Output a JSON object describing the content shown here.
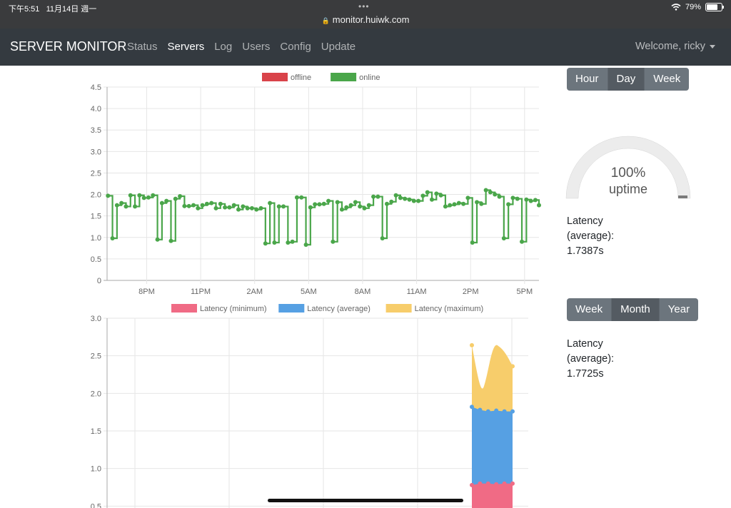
{
  "status_bar": {
    "time": "下午5:51",
    "date": "11月14日 週一",
    "dots": "•••",
    "url": "monitor.huiwk.com",
    "battery": "79%"
  },
  "navbar": {
    "brand": "SERVER MONITOR",
    "items": [
      {
        "label": "Status",
        "active": false
      },
      {
        "label": "Servers",
        "active": true
      },
      {
        "label": "Log",
        "active": false
      },
      {
        "label": "Users",
        "active": false
      },
      {
        "label": "Config",
        "active": false
      },
      {
        "label": "Update",
        "active": false
      }
    ],
    "welcome": "Welcome, ricky"
  },
  "range_top": {
    "buttons": [
      "Hour",
      "Day",
      "Week"
    ],
    "active": "Day"
  },
  "gauge": {
    "percent_label": "100%",
    "label": "uptime",
    "value": 100
  },
  "latency_day": {
    "label1": "Latency",
    "label2": "(average):",
    "value": "1.7387s"
  },
  "range_bottom": {
    "buttons": [
      "Week",
      "Month",
      "Year"
    ],
    "active": "Month"
  },
  "latency_month": {
    "label1": "Latency",
    "label2": "(average):",
    "value": "1.7725s"
  },
  "colors": {
    "offline": "#d9434a",
    "online": "#4aa64a",
    "min": "#f06b85",
    "avg": "#56a0e3",
    "max": "#f7cd6b"
  },
  "chart_data": [
    {
      "type": "line",
      "legend": [
        {
          "name": "offline",
          "color": "#d9434a"
        },
        {
          "name": "online",
          "color": "#4aa64a"
        }
      ],
      "ylim": [
        0,
        4.5
      ],
      "yticks": [
        "0",
        "0.5",
        "1.0",
        "1.5",
        "2.0",
        "2.5",
        "3.0",
        "3.5",
        "4.0",
        "4.5"
      ],
      "xticks": [
        "8PM",
        "11PM",
        "2AM",
        "5AM",
        "8AM",
        "11AM",
        "2PM",
        "5PM"
      ],
      "xlim_hours": [
        17.8,
        41.8
      ],
      "series": [
        {
          "name": "online",
          "stepped": true,
          "points": [
            [
              17.85,
              1.97
            ],
            [
              18.1,
              0.98
            ],
            [
              18.35,
              1.75
            ],
            [
              18.6,
              1.8
            ],
            [
              18.85,
              1.72
            ],
            [
              19.1,
              1.98
            ],
            [
              19.35,
              1.72
            ],
            [
              19.6,
              1.98
            ],
            [
              19.85,
              1.92
            ],
            [
              20.1,
              1.93
            ],
            [
              20.35,
              1.98
            ],
            [
              20.6,
              0.95
            ],
            [
              20.85,
              1.8
            ],
            [
              21.1,
              1.85
            ],
            [
              21.35,
              0.92
            ],
            [
              21.6,
              1.9
            ],
            [
              21.85,
              1.96
            ],
            [
              22.1,
              1.73
            ],
            [
              22.35,
              1.73
            ],
            [
              22.6,
              1.75
            ],
            [
              22.85,
              1.68
            ],
            [
              23.1,
              1.75
            ],
            [
              23.35,
              1.78
            ],
            [
              23.6,
              1.8
            ],
            [
              23.85,
              1.68
            ],
            [
              24.1,
              1.78
            ],
            [
              24.35,
              1.7
            ],
            [
              24.6,
              1.7
            ],
            [
              24.85,
              1.75
            ],
            [
              25.1,
              1.65
            ],
            [
              25.35,
              1.72
            ],
            [
              25.6,
              1.68
            ],
            [
              25.85,
              1.68
            ],
            [
              26.1,
              1.65
            ],
            [
              26.35,
              1.68
            ],
            [
              26.6,
              0.86
            ],
            [
              26.85,
              1.8
            ],
            [
              27.1,
              0.88
            ],
            [
              27.35,
              1.72
            ],
            [
              27.6,
              1.72
            ],
            [
              27.85,
              0.88
            ],
            [
              28.1,
              0.9
            ],
            [
              28.35,
              1.93
            ],
            [
              28.6,
              1.93
            ],
            [
              28.85,
              0.83
            ],
            [
              29.1,
              1.7
            ],
            [
              29.35,
              1.77
            ],
            [
              29.6,
              1.77
            ],
            [
              29.85,
              1.78
            ],
            [
              30.1,
              1.85
            ],
            [
              30.35,
              0.9
            ],
            [
              30.6,
              1.82
            ],
            [
              30.85,
              1.65
            ],
            [
              31.1,
              1.7
            ],
            [
              31.35,
              1.75
            ],
            [
              31.6,
              1.82
            ],
            [
              31.85,
              1.72
            ],
            [
              32.1,
              1.68
            ],
            [
              32.35,
              1.75
            ],
            [
              32.6,
              1.95
            ],
            [
              32.85,
              1.95
            ],
            [
              33.1,
              0.98
            ],
            [
              33.35,
              1.78
            ],
            [
              33.6,
              1.83
            ],
            [
              33.85,
              1.98
            ],
            [
              34.1,
              1.92
            ],
            [
              34.35,
              1.9
            ],
            [
              34.6,
              1.88
            ],
            [
              34.85,
              1.85
            ],
            [
              35.1,
              1.85
            ],
            [
              35.35,
              1.97
            ],
            [
              35.6,
              2.05
            ],
            [
              35.85,
              1.88
            ],
            [
              36.1,
              2.02
            ],
            [
              36.35,
              1.98
            ],
            [
              36.6,
              1.72
            ],
            [
              36.85,
              1.75
            ],
            [
              37.1,
              1.77
            ],
            [
              37.35,
              1.8
            ],
            [
              37.6,
              1.78
            ],
            [
              37.85,
              1.92
            ],
            [
              38.1,
              0.88
            ],
            [
              38.35,
              1.82
            ],
            [
              38.6,
              1.78
            ],
            [
              38.85,
              2.1
            ],
            [
              39.1,
              2.05
            ],
            [
              39.35,
              2.0
            ],
            [
              39.6,
              1.95
            ],
            [
              39.85,
              0.98
            ],
            [
              40.1,
              1.77
            ],
            [
              40.35,
              1.92
            ],
            [
              40.6,
              1.9
            ],
            [
              40.85,
              0.9
            ],
            [
              41.1,
              1.88
            ],
            [
              41.35,
              1.85
            ],
            [
              41.6,
              1.87
            ],
            [
              41.8,
              1.75
            ]
          ]
        },
        {
          "name": "offline",
          "points": []
        }
      ]
    },
    {
      "type": "area",
      "stacked": true,
      "legend": [
        {
          "name": "Latency (minimum)",
          "color": "#f06b85"
        },
        {
          "name": "Latency (average)",
          "color": "#56a0e3"
        },
        {
          "name": "Latency (maximum)",
          "color": "#f7cd6b"
        }
      ],
      "ylim": [
        0,
        3.0
      ],
      "yticks": [
        "0.5",
        "1.0",
        "1.5",
        "2.0",
        "2.5",
        "3.0"
      ],
      "series": [
        {
          "name": "Latency (minimum)",
          "points": [
            [
              0,
              0.78
            ],
            [
              0.2,
              0.8
            ],
            [
              0.4,
              0.8
            ],
            [
              0.6,
              0.79
            ],
            [
              0.8,
              0.8
            ],
            [
              1,
              0.8
            ]
          ]
        },
        {
          "name": "Latency (average)",
          "points": [
            [
              0,
              1.82
            ],
            [
              0.2,
              1.78
            ],
            [
              0.4,
              1.76
            ],
            [
              0.6,
              1.77
            ],
            [
              0.8,
              1.76
            ],
            [
              1,
              1.76
            ]
          ]
        },
        {
          "name": "Latency (maximum)",
          "points": [
            [
              0,
              2.64
            ],
            [
              0.3,
              2.1
            ],
            [
              0.65,
              2.63
            ],
            [
              1,
              2.36
            ]
          ]
        }
      ]
    }
  ]
}
